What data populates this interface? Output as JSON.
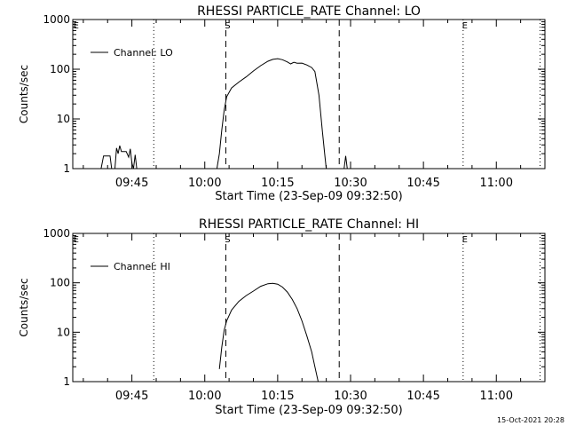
{
  "footer": {
    "timestamp": "15-Oct-2021 20:28"
  },
  "chart_data": [
    {
      "type": "line",
      "title": "RHESSI PARTICLE_RATE Channel: LO",
      "xlabel": "Start Time (23-Sep-09 09:32:50)",
      "ylabel": "Counts/sec",
      "yscale": "log",
      "ylim": [
        1,
        1000
      ],
      "xlim": [
        "09:32:50",
        "11:10:00"
      ],
      "x_ticks": [
        "09:45",
        "10:00",
        "10:15",
        "10:30",
        "10:45",
        "11:00"
      ],
      "y_ticks": [
        "1",
        "10",
        "100",
        "1000"
      ],
      "legend": {
        "position": "top-left",
        "entries": [
          "Channel: LO"
        ]
      },
      "markers": [
        {
          "label": "E",
          "time": "09:33:10",
          "style": "none"
        },
        {
          "label": "",
          "time": "09:49:30",
          "style": "dotted"
        },
        {
          "label": "S",
          "time": "10:04:20",
          "style": "dashed"
        },
        {
          "label": "",
          "time": "10:27:40",
          "style": "dashed"
        },
        {
          "label": "E",
          "time": "10:53:10",
          "style": "dotted"
        },
        {
          "label": "",
          "time": "11:09:00",
          "style": "dotted"
        }
      ],
      "series": [
        {
          "name": "Channel: LO",
          "segments": [
            [
              [
                "09:38:40",
                1
              ],
              [
                "09:39:10",
                1.8
              ],
              [
                "09:40:30",
                1.8
              ],
              [
                "09:40:50",
                1
              ],
              [
                "09:41:30",
                1
              ],
              [
                "09:41:50",
                2.6
              ],
              [
                "09:42:10",
                2.0
              ],
              [
                "09:42:30",
                2.9
              ],
              [
                "09:42:50",
                2.2
              ],
              [
                "09:43:50",
                2.2
              ],
              [
                "09:44:20",
                1.7
              ],
              [
                "09:44:40",
                2.5
              ],
              [
                "09:45:00",
                1.3
              ],
              [
                "09:45:20",
                1.0
              ],
              [
                "09:45:40",
                1.9
              ],
              [
                "09:46:00",
                1
              ]
            ],
            [
              [
                "10:02:30",
                1
              ],
              [
                "10:03:00",
                2
              ],
              [
                "10:03:30",
                6
              ],
              [
                "10:04:00",
                15
              ],
              [
                "10:04:30",
                28
              ],
              [
                "10:05:30",
                42
              ],
              [
                "10:07:00",
                55
              ],
              [
                "10:08:30",
                70
              ],
              [
                "10:10:00",
                92
              ],
              [
                "10:11:30",
                118
              ],
              [
                "10:13:00",
                145
              ],
              [
                "10:14:00",
                158
              ],
              [
                "10:15:00",
                163
              ],
              [
                "10:16:00",
                155
              ],
              [
                "10:17:00",
                140
              ],
              [
                "10:17:40",
                128
              ],
              [
                "10:18:20",
                138
              ],
              [
                "10:19:00",
                132
              ],
              [
                "10:20:00",
                133
              ],
              [
                "10:21:00",
                122
              ],
              [
                "10:22:00",
                108
              ],
              [
                "10:22:40",
                90
              ],
              [
                "10:23:30",
                30
              ],
              [
                "10:24:10",
                6
              ],
              [
                "10:24:40",
                2
              ],
              [
                "10:25:00",
                1
              ]
            ],
            [
              [
                "10:28:40",
                1
              ],
              [
                "10:29:00",
                1.8
              ],
              [
                "10:29:20",
                1
              ]
            ]
          ]
        }
      ]
    },
    {
      "type": "line",
      "title": "RHESSI PARTICLE_RATE Channel: HI",
      "xlabel": "Start Time (23-Sep-09 09:32:50)",
      "ylabel": "Counts/sec",
      "yscale": "log",
      "ylim": [
        1,
        1000
      ],
      "xlim": [
        "09:32:50",
        "11:10:00"
      ],
      "x_ticks": [
        "09:45",
        "10:00",
        "10:15",
        "10:30",
        "10:45",
        "11:00"
      ],
      "y_ticks": [
        "1",
        "10",
        "100",
        "1000"
      ],
      "legend": {
        "position": "top-left",
        "entries": [
          "Channel: HI"
        ]
      },
      "markers": [
        {
          "label": "E",
          "time": "09:33:10",
          "style": "none"
        },
        {
          "label": "",
          "time": "09:49:30",
          "style": "dotted"
        },
        {
          "label": "S",
          "time": "10:04:20",
          "style": "dashed"
        },
        {
          "label": "",
          "time": "10:27:40",
          "style": "dashed"
        },
        {
          "label": "E",
          "time": "10:53:10",
          "style": "dotted"
        },
        {
          "label": "",
          "time": "11:09:00",
          "style": "dotted"
        }
      ],
      "series": [
        {
          "name": "Channel: HI",
          "segments": [
            [
              [
                "10:03:00",
                1.8
              ],
              [
                "10:03:30",
                5
              ],
              [
                "10:04:00",
                11
              ],
              [
                "10:04:30",
                17
              ],
              [
                "10:05:30",
                28
              ],
              [
                "10:07:00",
                42
              ],
              [
                "10:08:30",
                55
              ],
              [
                "10:10:00",
                68
              ],
              [
                "10:11:30",
                85
              ],
              [
                "10:13:00",
                96
              ],
              [
                "10:14:00",
                98
              ],
              [
                "10:15:00",
                94
              ],
              [
                "10:16:00",
                82
              ],
              [
                "10:17:00",
                65
              ],
              [
                "10:18:00",
                46
              ],
              [
                "10:19:00",
                30
              ],
              [
                "10:20:00",
                17
              ],
              [
                "10:21:00",
                8.5
              ],
              [
                "10:22:00",
                4
              ],
              [
                "10:22:40",
                2
              ],
              [
                "10:23:20",
                1
              ]
            ]
          ]
        }
      ]
    }
  ]
}
